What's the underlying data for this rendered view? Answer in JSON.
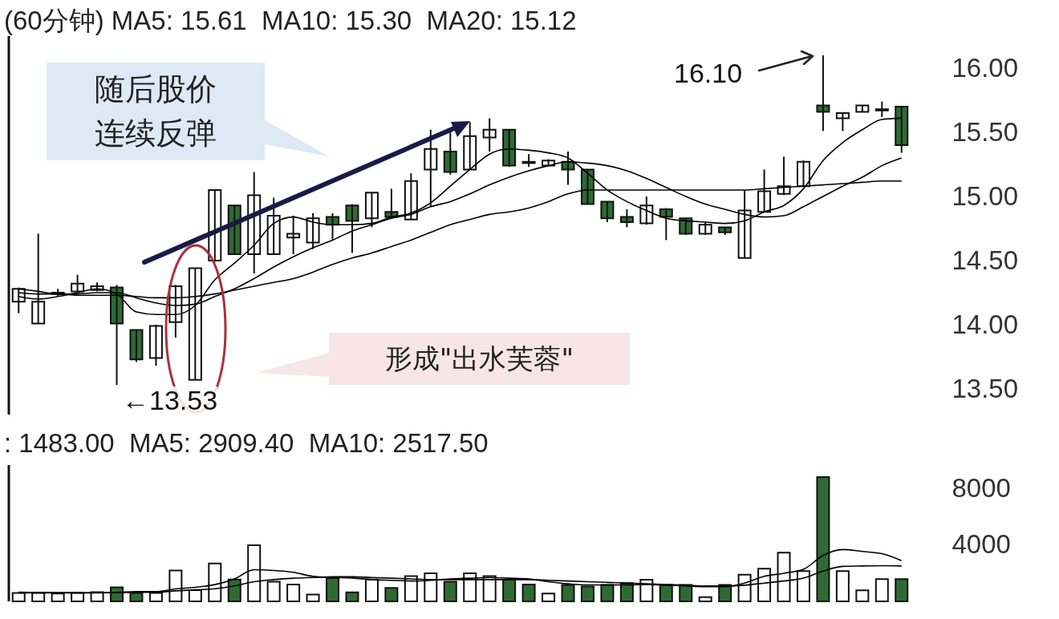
{
  "chart_data": [
    {
      "type": "candlestick",
      "title": "(60分钟) MA5: 15.61  MA10: 15.30  MA20: 15.12",
      "categories": [
        null,
        null,
        null,
        null,
        null,
        null,
        null,
        null,
        null,
        null,
        null,
        null,
        null,
        null,
        null,
        null,
        null,
        null,
        null,
        null,
        null,
        null,
        null,
        null,
        null,
        null,
        null,
        null,
        null,
        null,
        null,
        null,
        null,
        null,
        null,
        null,
        null,
        null,
        null,
        null,
        null,
        null,
        null,
        null,
        null,
        null
      ],
      "ohlc": [
        [
          14.18,
          14.29,
          14.09,
          14.28
        ],
        [
          14.01,
          14.71,
          14.01,
          14.18
        ],
        [
          14.24,
          14.28,
          14.22,
          14.25
        ],
        [
          14.26,
          14.39,
          14.25,
          14.32
        ],
        [
          14.27,
          14.33,
          14.26,
          14.3
        ],
        [
          14.29,
          14.31,
          13.53,
          14.01
        ],
        [
          13.96,
          13.96,
          13.71,
          13.73
        ],
        [
          13.74,
          14.0,
          13.68,
          13.99
        ],
        [
          14.02,
          14.31,
          13.9,
          14.3
        ],
        [
          13.57,
          14.44,
          13.57,
          14.44
        ],
        [
          14.5,
          15.05,
          14.49,
          15.05
        ],
        [
          14.93,
          14.93,
          14.55,
          14.55
        ],
        [
          14.55,
          15.19,
          14.4,
          15.01
        ],
        [
          14.55,
          14.99,
          14.55,
          14.85
        ],
        [
          14.68,
          14.85,
          14.55,
          14.71
        ],
        [
          14.64,
          14.87,
          14.59,
          14.83
        ],
        [
          14.84,
          14.87,
          14.66,
          14.78
        ],
        [
          14.93,
          14.94,
          14.56,
          14.81
        ],
        [
          14.83,
          15.03,
          14.76,
          15.03
        ],
        [
          14.88,
          15.06,
          14.83,
          14.84
        ],
        [
          14.82,
          15.18,
          14.82,
          15.12
        ],
        [
          15.21,
          15.52,
          14.92,
          15.37
        ],
        [
          15.35,
          15.52,
          15.17,
          15.19
        ],
        [
          15.21,
          15.58,
          15.21,
          15.47
        ],
        [
          15.46,
          15.61,
          15.35,
          15.52
        ],
        [
          15.52,
          15.52,
          15.23,
          15.24
        ],
        [
          15.27,
          15.33,
          15.23,
          15.26
        ],
        [
          15.24,
          15.29,
          15.24,
          15.28
        ],
        [
          15.27,
          15.35,
          15.09,
          15.21
        ],
        [
          15.21,
          15.21,
          14.94,
          14.94
        ],
        [
          14.96,
          14.96,
          14.8,
          14.83
        ],
        [
          14.84,
          14.9,
          14.76,
          14.8
        ],
        [
          14.79,
          15.0,
          14.78,
          14.93
        ],
        [
          14.9,
          14.91,
          14.66,
          14.84
        ],
        [
          14.83,
          14.83,
          14.7,
          14.71
        ],
        [
          14.71,
          14.8,
          14.7,
          14.78
        ],
        [
          14.76,
          14.76,
          14.7,
          14.72
        ],
        [
          14.52,
          15.05,
          14.52,
          14.89
        ],
        [
          14.88,
          15.21,
          14.88,
          15.04
        ],
        [
          15.02,
          15.31,
          15.01,
          15.08
        ],
        [
          15.08,
          15.28,
          15.08,
          15.27
        ],
        [
          15.71,
          16.1,
          15.51,
          15.66
        ],
        [
          15.61,
          15.65,
          15.51,
          15.65
        ],
        [
          15.66,
          15.71,
          15.66,
          15.71
        ],
        [
          15.67,
          15.74,
          15.62,
          15.68
        ],
        [
          15.7,
          15.7,
          15.34,
          15.4
        ]
      ],
      "colors": [
        "#ffffff",
        "#ffffff",
        "#ffffff",
        "#ffffff",
        "#ffffff",
        "#2e6b34",
        "#2e6b34",
        "#ffffff",
        "#ffffff",
        "#ffffff",
        "#ffffff",
        "#2e6b34",
        "#ffffff",
        "#ffffff",
        "#ffffff",
        "#ffffff",
        "#2e6b34",
        "#2e6b34",
        "#ffffff",
        "#2e6b34",
        "#ffffff",
        "#ffffff",
        "#2e6b34",
        "#ffffff",
        "#ffffff",
        "#2e6b34",
        "#2e6b34",
        "#ffffff",
        "#2e6b34",
        "#2e6b34",
        "#2e6b34",
        "#2e6b34",
        "#ffffff",
        "#2e6b34",
        "#2e6b34",
        "#ffffff",
        "#2e6b34",
        "#ffffff",
        "#ffffff",
        "#ffffff",
        "#ffffff",
        "#2e6b34",
        "#ffffff",
        "#ffffff",
        "#ffffff",
        "#2e6b34"
      ],
      "series": [
        {
          "type": "line",
          "color": "#000000",
          "values": [
            14.22,
            14.2,
            14.22,
            14.25,
            14.28,
            14.24,
            14.1,
            14.08,
            14.08,
            14.15,
            14.35,
            14.48,
            14.62,
            14.79,
            14.84,
            14.8,
            14.78,
            14.78,
            14.79,
            14.84,
            14.87,
            14.95,
            15.08,
            15.21,
            15.33,
            15.37,
            15.36,
            15.34,
            15.3,
            15.18,
            15.05,
            14.96,
            14.89,
            14.83,
            14.81,
            14.8,
            14.79,
            14.81,
            14.88,
            14.93,
            15.06,
            15.28,
            15.42,
            15.52,
            15.6,
            15.61
          ]
        },
        {
          "type": "line",
          "color": "#000000",
          "values": [
            14.28,
            14.26,
            14.24,
            14.24,
            14.25,
            14.25,
            14.21,
            14.17,
            14.15,
            14.16,
            14.22,
            14.28,
            14.36,
            14.45,
            14.53,
            14.6,
            14.66,
            14.73,
            14.78,
            14.83,
            14.86,
            14.92,
            14.96,
            15.02,
            15.09,
            15.15,
            15.2,
            15.24,
            15.27,
            15.26,
            15.24,
            15.2,
            15.14,
            15.07,
            15.0,
            14.94,
            14.9,
            14.86,
            14.84,
            14.85,
            14.92,
            15.0,
            15.08,
            15.15,
            15.24,
            15.3
          ]
        },
        {
          "type": "line",
          "color": "#000000",
          "values": [
            14.25,
            14.24,
            14.24,
            14.23,
            14.23,
            14.23,
            14.22,
            14.21,
            14.21,
            14.22,
            14.24,
            14.27,
            14.3,
            14.33,
            14.36,
            14.41,
            14.47,
            14.52,
            14.56,
            14.61,
            14.66,
            14.72,
            14.78,
            14.82,
            14.86,
            14.88,
            14.91,
            14.96,
            15.02,
            15.05,
            15.05,
            15.05,
            15.05,
            15.05,
            15.05,
            15.05,
            15.05,
            15.05,
            15.06,
            15.07,
            15.08,
            15.09,
            15.1,
            15.11,
            15.12,
            15.12
          ]
        }
      ],
      "ylim": [
        13.3,
        16.25
      ],
      "yticks": [
        {
          "value": 13.5,
          "label": "13.50"
        },
        {
          "value": 14,
          "label": "14.00"
        },
        {
          "value": 14.5,
          "label": "14.50"
        },
        {
          "value": 15,
          "label": "15.00"
        },
        {
          "value": 15.5,
          "label": "15.50"
        },
        {
          "value": 16,
          "label": "16.00"
        }
      ],
      "annotations": [
        "16.10",
        "←13.53",
        "随后股价连续反弹",
        "形成\"出水芙蓉\""
      ]
    },
    {
      "type": "bar",
      "title": ": 1483.00  MA5: 2909.40  MA10: 2517.50",
      "categories": [
        null,
        null,
        null,
        null,
        null,
        null,
        null,
        null,
        null,
        null,
        null,
        null,
        null,
        null,
        null,
        null,
        null,
        null,
        null,
        null,
        null,
        null,
        null,
        null,
        null,
        null,
        null,
        null,
        null,
        null,
        null,
        null,
        null,
        null,
        null,
        null,
        null,
        null,
        null,
        null,
        null,
        null,
        null,
        null,
        null,
        null
      ],
      "values": [
        600,
        600,
        550,
        600,
        650,
        1000,
        600,
        600,
        2200,
        800,
        2700,
        1550,
        4000,
        1400,
        1200,
        480,
        1650,
        640,
        1550,
        950,
        1800,
        2000,
        1400,
        2000,
        1800,
        1550,
        1200,
        550,
        1170,
        1050,
        1170,
        1300,
        1540,
        1170,
        1170,
        300,
        1170,
        1900,
        2330,
        3470,
        2150,
        8850,
        2150,
        790,
        1590,
        1590
      ],
      "colors": [
        "#ffffff",
        "#ffffff",
        "#ffffff",
        "#ffffff",
        "#ffffff",
        "#2e6b34",
        "#2e6b34",
        "#ffffff",
        "#ffffff",
        "#ffffff",
        "#ffffff",
        "#2e6b34",
        "#ffffff",
        "#ffffff",
        "#ffffff",
        "#ffffff",
        "#2e6b34",
        "#2e6b34",
        "#ffffff",
        "#2e6b34",
        "#ffffff",
        "#ffffff",
        "#2e6b34",
        "#ffffff",
        "#ffffff",
        "#2e6b34",
        "#2e6b34",
        "#ffffff",
        "#2e6b34",
        "#2e6b34",
        "#2e6b34",
        "#2e6b34",
        "#ffffff",
        "#2e6b34",
        "#2e6b34",
        "#ffffff",
        "#2e6b34",
        "#ffffff",
        "#ffffff",
        "#ffffff",
        "#ffffff",
        "#2e6b34",
        "#ffffff",
        "#ffffff",
        "#ffffff",
        "#2e6b34"
      ],
      "series": [
        {
          "type": "line",
          "color": "#000000",
          "values": [
            600,
            600,
            600,
            600,
            600,
            640,
            700,
            700,
            880,
            1000,
            1190,
            1600,
            2250,
            2200,
            2070,
            1780,
            1700,
            1660,
            1550,
            1500,
            1450,
            1500,
            1600,
            1650,
            1700,
            1650,
            1600,
            1400,
            1250,
            1170,
            1170,
            1170,
            1200,
            1150,
            1100,
            1040,
            1040,
            1300,
            1780,
            2000,
            2280,
            3270,
            3690,
            3550,
            3400,
            2900
          ]
        },
        {
          "type": "line",
          "color": "#000000",
          "values": [
            650,
            640,
            630,
            620,
            610,
            620,
            640,
            650,
            750,
            820,
            900,
            1100,
            1400,
            1550,
            1650,
            1700,
            1750,
            1750,
            1700,
            1650,
            1600,
            1550,
            1550,
            1550,
            1550,
            1550,
            1550,
            1500,
            1450,
            1400,
            1350,
            1300,
            1250,
            1200,
            1150,
            1100,
            1100,
            1150,
            1300,
            1450,
            1650,
            2150,
            2490,
            2520,
            2540,
            2520
          ]
        }
      ],
      "ylim": [
        0,
        9700
      ],
      "yticks": [
        4000,
        8000
      ]
    }
  ]
}
